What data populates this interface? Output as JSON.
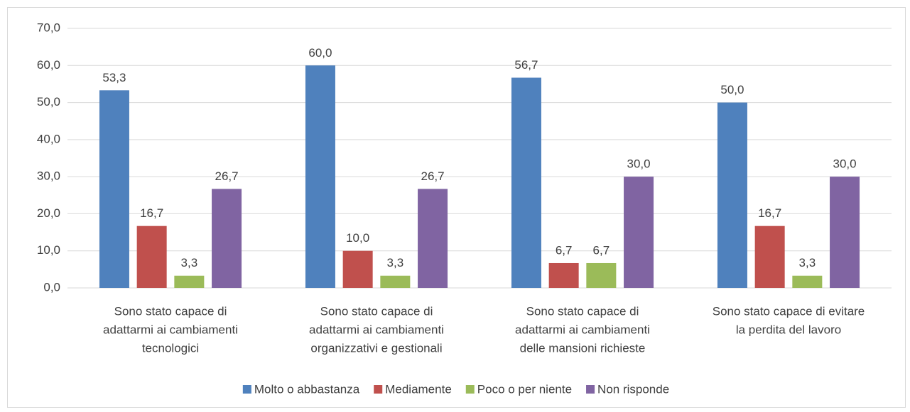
{
  "chart_data": {
    "type": "bar",
    "categories": [
      [
        "Sono stato capace di",
        "adattarmi ai cambiamenti",
        "tecnologici"
      ],
      [
        "Sono stato capace di",
        "adattarmi ai cambiamenti",
        "organizzativi e gestionali"
      ],
      [
        "Sono stato capace di",
        "adattarmi ai cambiamenti",
        "delle mansioni richieste"
      ],
      [
        "Sono stato capace di evitare",
        "la perdita del lavoro"
      ]
    ],
    "series": [
      {
        "name": "Molto o abbastanza",
        "color": "#4f81bd",
        "values": [
          53.3,
          60.0,
          56.7,
          50.0
        ],
        "value_labels": [
          "53,3",
          "60,0",
          "56,7",
          "50,0"
        ]
      },
      {
        "name": "Mediamente",
        "color": "#c0504d",
        "values": [
          16.7,
          10.0,
          6.7,
          16.7
        ],
        "value_labels": [
          "16,7",
          "10,0",
          "6,7",
          "16,7"
        ]
      },
      {
        "name": "Poco o per niente",
        "color": "#9bbb59",
        "values": [
          3.3,
          3.3,
          6.7,
          3.3
        ],
        "value_labels": [
          "3,3",
          "3,3",
          "6,7",
          "3,3"
        ]
      },
      {
        "name": "Non risponde",
        "color": "#8064a2",
        "values": [
          26.7,
          26.7,
          30.0,
          30.0
        ],
        "value_labels": [
          "26,7",
          "26,7",
          "30,0",
          "30,0"
        ]
      }
    ],
    "ylim": [
      0,
      70
    ],
    "yticks": [
      {
        "value": 0,
        "label": "0,0"
      },
      {
        "value": 10,
        "label": "10,0"
      },
      {
        "value": 20,
        "label": "20,0"
      },
      {
        "value": 30,
        "label": "30,0"
      },
      {
        "value": 40,
        "label": "40,0"
      },
      {
        "value": 50,
        "label": "50,0"
      },
      {
        "value": 60,
        "label": "60,0"
      },
      {
        "value": 70,
        "label": "70,0"
      }
    ],
    "grid": true,
    "legend": "bottom"
  }
}
